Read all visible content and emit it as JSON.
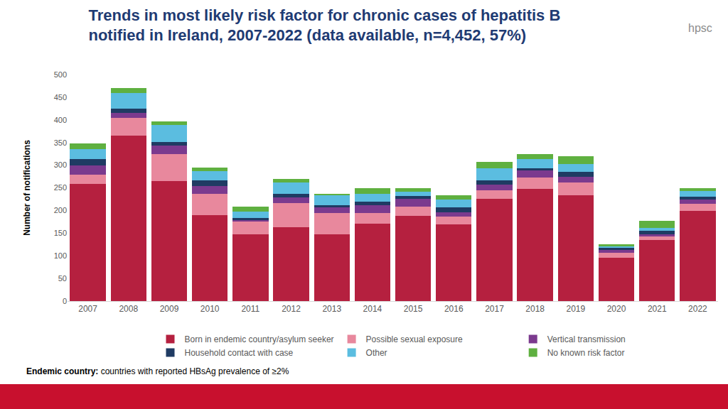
{
  "chart_data": {
    "type": "bar",
    "stacked": true,
    "title": [
      "Trends in most likely risk factor for chronic cases of hepatitis B",
      "notified in Ireland, 2007-2022 (data available, n=4,452, 57%)"
    ],
    "y_label": "Number of notifications",
    "categories": [
      "2007",
      "2008",
      "2009",
      "2010",
      "2011",
      "2012",
      "2013",
      "2014",
      "2015",
      "2016",
      "2017",
      "2018",
      "2019",
      "2020",
      "2021",
      "2022"
    ],
    "series": [
      {
        "name": "Born in endemic country/asylum seeker",
        "color": "#b5203f",
        "values": [
          259,
          365,
          265,
          189,
          148,
          163,
          148,
          171,
          188,
          170,
          226,
          248,
          234,
          95,
          135,
          199
        ]
      },
      {
        "name": "Possible sexual exposure",
        "color": "#e8889d",
        "values": [
          20,
          39,
          60,
          47,
          27,
          54,
          47,
          24,
          20,
          16,
          18,
          24,
          27,
          11,
          8,
          16
        ]
      },
      {
        "name": "Vertical transmission",
        "color": "#7b3a8e",
        "values": [
          20,
          12,
          18,
          18,
          4,
          12,
          13,
          17,
          17,
          10,
          13,
          16,
          13,
          8,
          5,
          9
        ]
      },
      {
        "name": "Household contact with case",
        "color": "#1f3b63",
        "values": [
          14,
          9,
          8,
          12,
          4,
          7,
          3,
          7,
          7,
          11,
          10,
          5,
          12,
          3,
          7,
          6
        ]
      },
      {
        "name": "Other",
        "color": "#5bbde0",
        "values": [
          22,
          34,
          38,
          21,
          15,
          26,
          22,
          18,
          10,
          17,
          26,
          20,
          17,
          4,
          7,
          13
        ]
      },
      {
        "name": "No known risk factor",
        "color": "#5fb040",
        "values": [
          13,
          11,
          7,
          8,
          10,
          8,
          4,
          12,
          8,
          9,
          15,
          11,
          17,
          4,
          15,
          7
        ]
      }
    ],
    "ylim": [
      0,
      500
    ],
    "yticks": [
      0,
      50,
      100,
      150,
      200,
      250,
      300,
      350,
      400,
      450,
      500
    ],
    "grid": false,
    "legend": "bottom",
    "note": "Endemic country: countries with reported HBsAg prevalence of ≥2%",
    "logo_text": "hpsc"
  }
}
